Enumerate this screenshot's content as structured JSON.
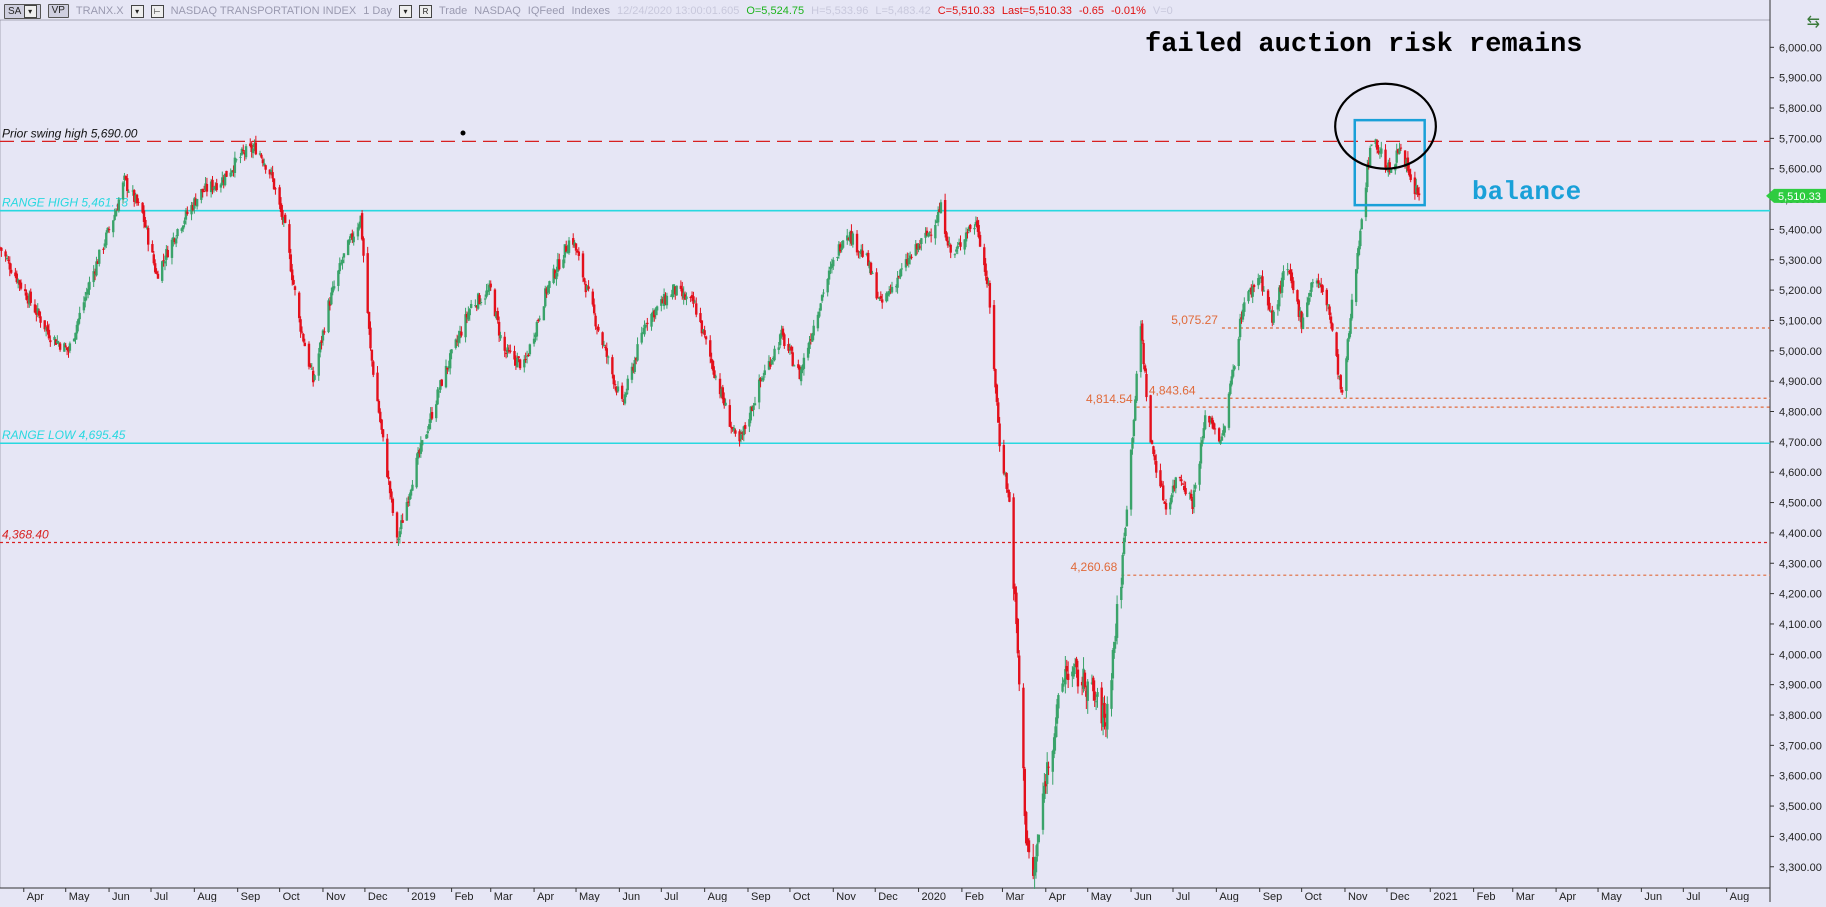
{
  "toolbar": {
    "btn1": "SA",
    "btn2": "VP",
    "symbol": "TRANX.X",
    "name": "NASDAQ TRANSPORTATION INDEX",
    "interval": "1 Day",
    "trade": "Trade",
    "exchange": "NASDAQ",
    "feed": "IQFeed",
    "group": "Indexes",
    "datetime": "12/24/2020 13:00:01.605",
    "open": "O=5,524.75",
    "high": "H=5,533.96",
    "low": "L=5,483.42",
    "close": "C=5,510.33",
    "last": "Last=5,510.33",
    "change": "-0.65",
    "pct": "-0.01%",
    "volume": "V=0"
  },
  "colors": {
    "background": "#e6e6f5",
    "up": "#3aa36a",
    "down": "#e3101c",
    "range_line": "#28d8e0",
    "swing_line": "#d82020",
    "level_line": "#e06a3a",
    "annotation": "#1aa0d8"
  },
  "annotations": {
    "headline": "failed auction risk remains",
    "balance": "balance",
    "circle_icon": "ellipse-marker",
    "box_icon": "rectangle-marker"
  },
  "chart_data": {
    "type": "candlestick",
    "title": "NASDAQ TRANSPORTATION INDEX",
    "symbol": "TRANX.X",
    "ylim": [
      3230,
      6090
    ],
    "y_ticks": [
      3300,
      3400,
      3500,
      3600,
      3700,
      3800,
      3900,
      4000,
      4100,
      4200,
      4300,
      4400,
      4500,
      4600,
      4700,
      4800,
      4900,
      5000,
      5100,
      5200,
      5300,
      5400,
      5500,
      5600,
      5700,
      5800,
      5900,
      6000
    ],
    "y_tick_labels": [
      "3,300.00",
      "3,400.00",
      "3,500.00",
      "3,600.00",
      "3,700.00",
      "3,800.00",
      "3,900.00",
      "4,000.00",
      "4,100.00",
      "4,200.00",
      "4,300.00",
      "4,400.00",
      "4,500.00",
      "4,600.00",
      "4,700.00",
      "4,800.00",
      "4,900.00",
      "5,000.00",
      "5,100.00",
      "5,200.00",
      "5,300.00",
      "5,400.00",
      "5,500.00",
      "5,600.00",
      "5,700.00",
      "5,800.00",
      "5,900.00",
      "6,000.00"
    ],
    "x_ticks": [
      {
        "label": "Apr",
        "date": "2018-04-01"
      },
      {
        "label": "May",
        "date": "2018-05-01"
      },
      {
        "label": "Jun",
        "date": "2018-06-01"
      },
      {
        "label": "Jul",
        "date": "2018-07-01"
      },
      {
        "label": "Aug",
        "date": "2018-08-01"
      },
      {
        "label": "Sep",
        "date": "2018-09-01"
      },
      {
        "label": "Oct",
        "date": "2018-10-01"
      },
      {
        "label": "Nov",
        "date": "2018-11-01"
      },
      {
        "label": "Dec",
        "date": "2018-12-01"
      },
      {
        "label": "2019",
        "date": "2019-01-01"
      },
      {
        "label": "Feb",
        "date": "2019-02-01"
      },
      {
        "label": "Mar",
        "date": "2019-03-01"
      },
      {
        "label": "Apr",
        "date": "2019-04-01"
      },
      {
        "label": "May",
        "date": "2019-05-01"
      },
      {
        "label": "Jun",
        "date": "2019-06-01"
      },
      {
        "label": "Jul",
        "date": "2019-07-01"
      },
      {
        "label": "Aug",
        "date": "2019-08-01"
      },
      {
        "label": "Sep",
        "date": "2019-09-01"
      },
      {
        "label": "Oct",
        "date": "2019-10-01"
      },
      {
        "label": "Nov",
        "date": "2019-11-01"
      },
      {
        "label": "Dec",
        "date": "2019-12-01"
      },
      {
        "label": "2020",
        "date": "2020-01-01"
      },
      {
        "label": "Feb",
        "date": "2020-02-01"
      },
      {
        "label": "Mar",
        "date": "2020-03-01"
      },
      {
        "label": "Apr",
        "date": "2020-04-01"
      },
      {
        "label": "May",
        "date": "2020-05-01"
      },
      {
        "label": "Jun",
        "date": "2020-06-01"
      },
      {
        "label": "Jul",
        "date": "2020-07-01"
      },
      {
        "label": "Aug",
        "date": "2020-08-01"
      },
      {
        "label": "Sep",
        "date": "2020-09-01"
      },
      {
        "label": "Oct",
        "date": "2020-10-01"
      },
      {
        "label": "Nov",
        "date": "2020-11-01"
      },
      {
        "label": "Dec",
        "date": "2020-12-01"
      },
      {
        "label": "2021",
        "date": "2021-01-01"
      },
      {
        "label": "Feb",
        "date": "2021-02-01"
      },
      {
        "label": "Mar",
        "date": "2021-03-01"
      },
      {
        "label": "Apr",
        "date": "2021-04-01"
      },
      {
        "label": "May",
        "date": "2021-05-01"
      },
      {
        "label": "Jun",
        "date": "2021-06-01"
      },
      {
        "label": "Jul",
        "date": "2021-07-01"
      },
      {
        "label": "Aug",
        "date": "2021-08-01"
      }
    ],
    "x_range": [
      "2018-03-15",
      "2021-09-01"
    ],
    "close_path": [
      [
        "2018-03-15",
        5340
      ],
      [
        "2018-04-01",
        5200
      ],
      [
        "2018-04-20",
        5050
      ],
      [
        "2018-05-03",
        5000
      ],
      [
        "2018-05-20",
        5250
      ],
      [
        "2018-06-05",
        5450
      ],
      [
        "2018-06-12",
        5560
      ],
      [
        "2018-06-25",
        5450
      ],
      [
        "2018-07-05",
        5250
      ],
      [
        "2018-07-20",
        5400
      ],
      [
        "2018-08-05",
        5520
      ],
      [
        "2018-08-20",
        5560
      ],
      [
        "2018-09-05",
        5650
      ],
      [
        "2018-09-15",
        5670
      ],
      [
        "2018-09-25",
        5580
      ],
      [
        "2018-10-05",
        5400
      ],
      [
        "2018-10-15",
        5100
      ],
      [
        "2018-10-25",
        4900
      ],
      [
        "2018-11-05",
        5150
      ],
      [
        "2018-11-15",
        5300
      ],
      [
        "2018-11-28",
        5440
      ],
      [
        "2018-12-05",
        5000
      ],
      [
        "2018-12-14",
        4700
      ],
      [
        "2018-12-24",
        4368
      ],
      [
        "2019-01-05",
        4600
      ],
      [
        "2019-01-25",
        4900
      ],
      [
        "2019-02-15",
        5150
      ],
      [
        "2019-03-01",
        5200
      ],
      [
        "2019-03-10",
        5000
      ],
      [
        "2019-03-25",
        4950
      ],
      [
        "2019-04-10",
        5200
      ],
      [
        "2019-04-28",
        5380
      ],
      [
        "2019-05-15",
        5100
      ],
      [
        "2019-06-03",
        4820
      ],
      [
        "2019-06-20",
        5100
      ],
      [
        "2019-07-10",
        5200
      ],
      [
        "2019-07-25",
        5150
      ],
      [
        "2019-08-10",
        4900
      ],
      [
        "2019-08-25",
        4680
      ],
      [
        "2019-09-10",
        4900
      ],
      [
        "2019-09-25",
        5050
      ],
      [
        "2019-10-08",
        4920
      ],
      [
        "2019-10-25",
        5200
      ],
      [
        "2019-11-10",
        5400
      ],
      [
        "2019-11-25",
        5300
      ],
      [
        "2019-12-05",
        5150
      ],
      [
        "2019-12-25",
        5300
      ],
      [
        "2020-01-10",
        5400
      ],
      [
        "2020-01-17",
        5470
      ],
      [
        "2020-01-25",
        5300
      ],
      [
        "2020-02-05",
        5400
      ],
      [
        "2020-02-12",
        5420
      ],
      [
        "2020-02-20",
        5200
      ],
      [
        "2020-02-28",
        4700
      ],
      [
        "2020-03-06",
        4500
      ],
      [
        "2020-03-12",
        4000
      ],
      [
        "2020-03-18",
        3400
      ],
      [
        "2020-03-23",
        3250
      ],
      [
        "2020-04-01",
        3600
      ],
      [
        "2020-04-15",
        3950
      ],
      [
        "2020-05-01",
        3900
      ],
      [
        "2020-05-14",
        3780
      ],
      [
        "2020-05-25",
        4260
      ],
      [
        "2020-06-08",
        5080
      ],
      [
        "2020-06-15",
        4700
      ],
      [
        "2020-06-26",
        4480
      ],
      [
        "2020-07-05",
        4600
      ],
      [
        "2020-07-15",
        4500
      ],
      [
        "2020-07-25",
        4800
      ],
      [
        "2020-08-05",
        4700
      ],
      [
        "2020-08-20",
        5150
      ],
      [
        "2020-09-01",
        5250
      ],
      [
        "2020-09-10",
        5100
      ],
      [
        "2020-09-20",
        5280
      ],
      [
        "2020-10-01",
        5100
      ],
      [
        "2020-10-10",
        5250
      ],
      [
        "2020-10-20",
        5150
      ],
      [
        "2020-10-30",
        4843
      ],
      [
        "2020-11-06",
        5150
      ],
      [
        "2020-11-13",
        5450
      ],
      [
        "2020-11-20",
        5700
      ],
      [
        "2020-11-27",
        5650
      ],
      [
        "2020-12-04",
        5580
      ],
      [
        "2020-12-11",
        5690
      ],
      [
        "2020-12-18",
        5550
      ],
      [
        "2020-12-24",
        5510.33
      ]
    ],
    "horizontal_levels": [
      {
        "label": "Prior swing high 5,690.00",
        "value": 5690,
        "style": "dashed",
        "color": "#d82020",
        "label_side": "left"
      },
      {
        "label": "RANGE HIGH 5,461.73",
        "value": 5461.73,
        "style": "solid",
        "color": "#28d8e0",
        "label_side": "left"
      },
      {
        "label": "RANGE LOW 4,695.45",
        "value": 4695.45,
        "style": "solid",
        "color": "#28d8e0",
        "label_side": "left"
      },
      {
        "label": "4,368.40",
        "value": 4368.4,
        "style": "dotted",
        "color": "#d82020",
        "label_side": "left"
      },
      {
        "label": "5,075.27",
        "value": 5075.27,
        "style": "dotted",
        "color": "#e06a3a",
        "start": "2020-08-05"
      },
      {
        "label": "4,843.64",
        "value": 4843.64,
        "style": "dotted",
        "color": "#e06a3a",
        "start": "2020-07-20"
      },
      {
        "label": "4,814.54",
        "value": 4814.54,
        "style": "dotted",
        "color": "#e06a3a",
        "start": "2020-06-05"
      },
      {
        "label": "4,260.68",
        "value": 4260.68,
        "style": "dotted",
        "color": "#e06a3a",
        "start": "2020-05-25"
      }
    ],
    "last_price": {
      "label": "5,510.33",
      "value": 5510.33
    },
    "balance_box": {
      "x0": "2020-11-08",
      "x1": "2020-12-28",
      "y0": 5480,
      "y1": 5760
    },
    "failed_auction_ellipse": {
      "x0": "2020-10-25",
      "x1": "2021-01-05",
      "y0": 5600,
      "y1": 5880
    }
  }
}
